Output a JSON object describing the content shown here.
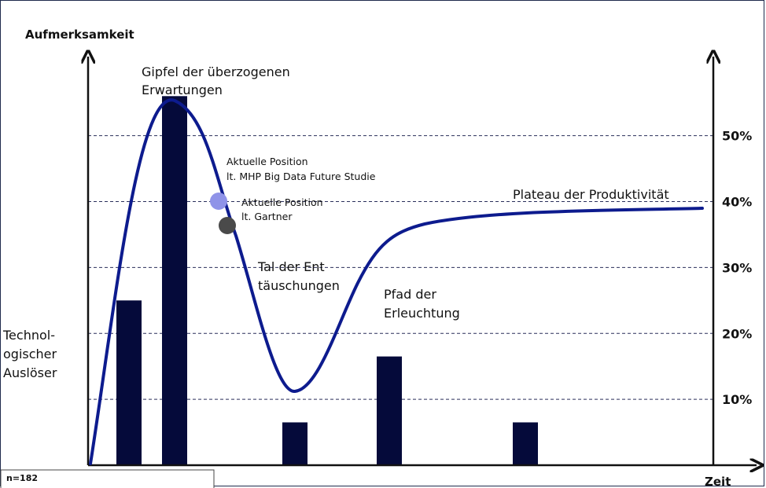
{
  "chart_data": {
    "type": "bar",
    "ylabel": "Aufmerksamkeit",
    "xlabel": "Zeit",
    "y_right_ticks": [
      "10%",
      "20%",
      "30%",
      "40%",
      "50%"
    ],
    "y_right_values": [
      10,
      20,
      30,
      40,
      50
    ],
    "ylim": [
      0,
      62
    ],
    "grid": "dashed horizontal",
    "bars": {
      "positions": [
        1,
        2,
        3,
        4,
        5
      ],
      "values": [
        25,
        56,
        6.5,
        16.5,
        6.5
      ],
      "color": "#050a3a"
    },
    "hype_curve": {
      "color": "#0b1a8c",
      "stroke_color": "#0d1b8e"
    },
    "phases": {
      "trigger": [
        "Technol-",
        "ogischer",
        "Auslöser"
      ],
      "peak": [
        "Gipfel der überzogenen",
        "Erwartungen"
      ],
      "trough": [
        "Tal der Ent",
        "täuschungen"
      ],
      "slope": [
        "Pfad der",
        "Erleuchtung"
      ],
      "plateau": [
        "Plateau der Produktivität"
      ]
    },
    "markers": [
      {
        "label": [
          "Aktuelle Position",
          "lt. MHP Big Data Future Studie"
        ],
        "color": "#8f93e8"
      },
      {
        "label": [
          "Aktuelle Position",
          "lt. Gartner"
        ],
        "color": "#4a4a4a"
      }
    ],
    "sample_size": "n=182"
  }
}
